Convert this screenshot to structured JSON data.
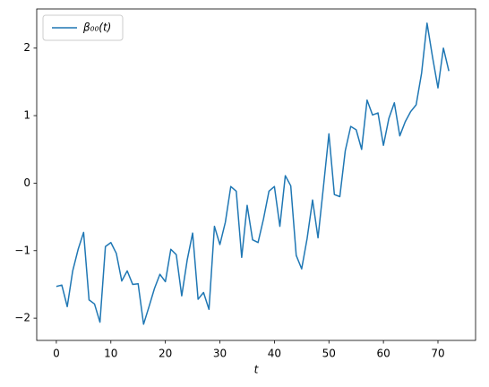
{
  "chart_data": {
    "type": "line",
    "x": [
      0,
      1,
      2,
      3,
      4,
      5,
      6,
      7,
      8,
      9,
      10,
      11,
      12,
      13,
      14,
      15,
      16,
      17,
      18,
      19,
      20,
      21,
      22,
      23,
      24,
      25,
      26,
      27,
      28,
      29,
      30,
      31,
      32,
      33,
      34,
      35,
      36,
      37,
      38,
      39,
      40,
      41,
      42,
      43,
      44,
      45,
      46,
      47,
      48,
      49,
      50,
      51,
      52,
      53,
      54,
      55,
      56,
      57,
      58,
      59,
      60,
      61,
      62,
      63,
      64,
      65,
      66,
      67,
      68,
      69,
      70,
      71,
      72
    ],
    "series": [
      {
        "name": "β₀₀(t)",
        "color": "#1f77b4",
        "values": [
          -1.53,
          -1.51,
          -1.83,
          -1.3,
          -0.98,
          -0.73,
          -1.73,
          -1.79,
          -2.06,
          -0.94,
          -0.88,
          -1.04,
          -1.45,
          -1.3,
          -1.5,
          -1.49,
          -2.09,
          -1.83,
          -1.56,
          -1.35,
          -1.46,
          -0.98,
          -1.06,
          -1.67,
          -1.14,
          -0.74,
          -1.72,
          -1.62,
          -1.87,
          -0.64,
          -0.91,
          -0.58,
          -0.05,
          -0.12,
          -1.1,
          -0.33,
          -0.84,
          -0.88,
          -0.53,
          -0.12,
          -0.05,
          -0.64,
          0.11,
          -0.04,
          -1.07,
          -1.27,
          -0.82,
          -0.25,
          -0.81,
          -0.05,
          0.73,
          -0.17,
          -0.2,
          0.48,
          0.84,
          0.79,
          0.5,
          1.23,
          1.01,
          1.04,
          0.56,
          0.96,
          1.19,
          0.7,
          0.91,
          1.06,
          1.16,
          1.63,
          2.37,
          1.87,
          1.41,
          2.0,
          1.66
        ]
      }
    ],
    "x_label": "t",
    "xlim": [
      -3.6,
      76.9
    ],
    "xticks": [
      0,
      10,
      20,
      30,
      40,
      50,
      60,
      70
    ],
    "ylim": [
      -2.33,
      2.58
    ],
    "yticks": [
      {
        "value": -2,
        "label": "−2"
      },
      {
        "value": -1,
        "label": "−1"
      },
      0,
      1,
      2
    ],
    "legend": "upper left"
  }
}
